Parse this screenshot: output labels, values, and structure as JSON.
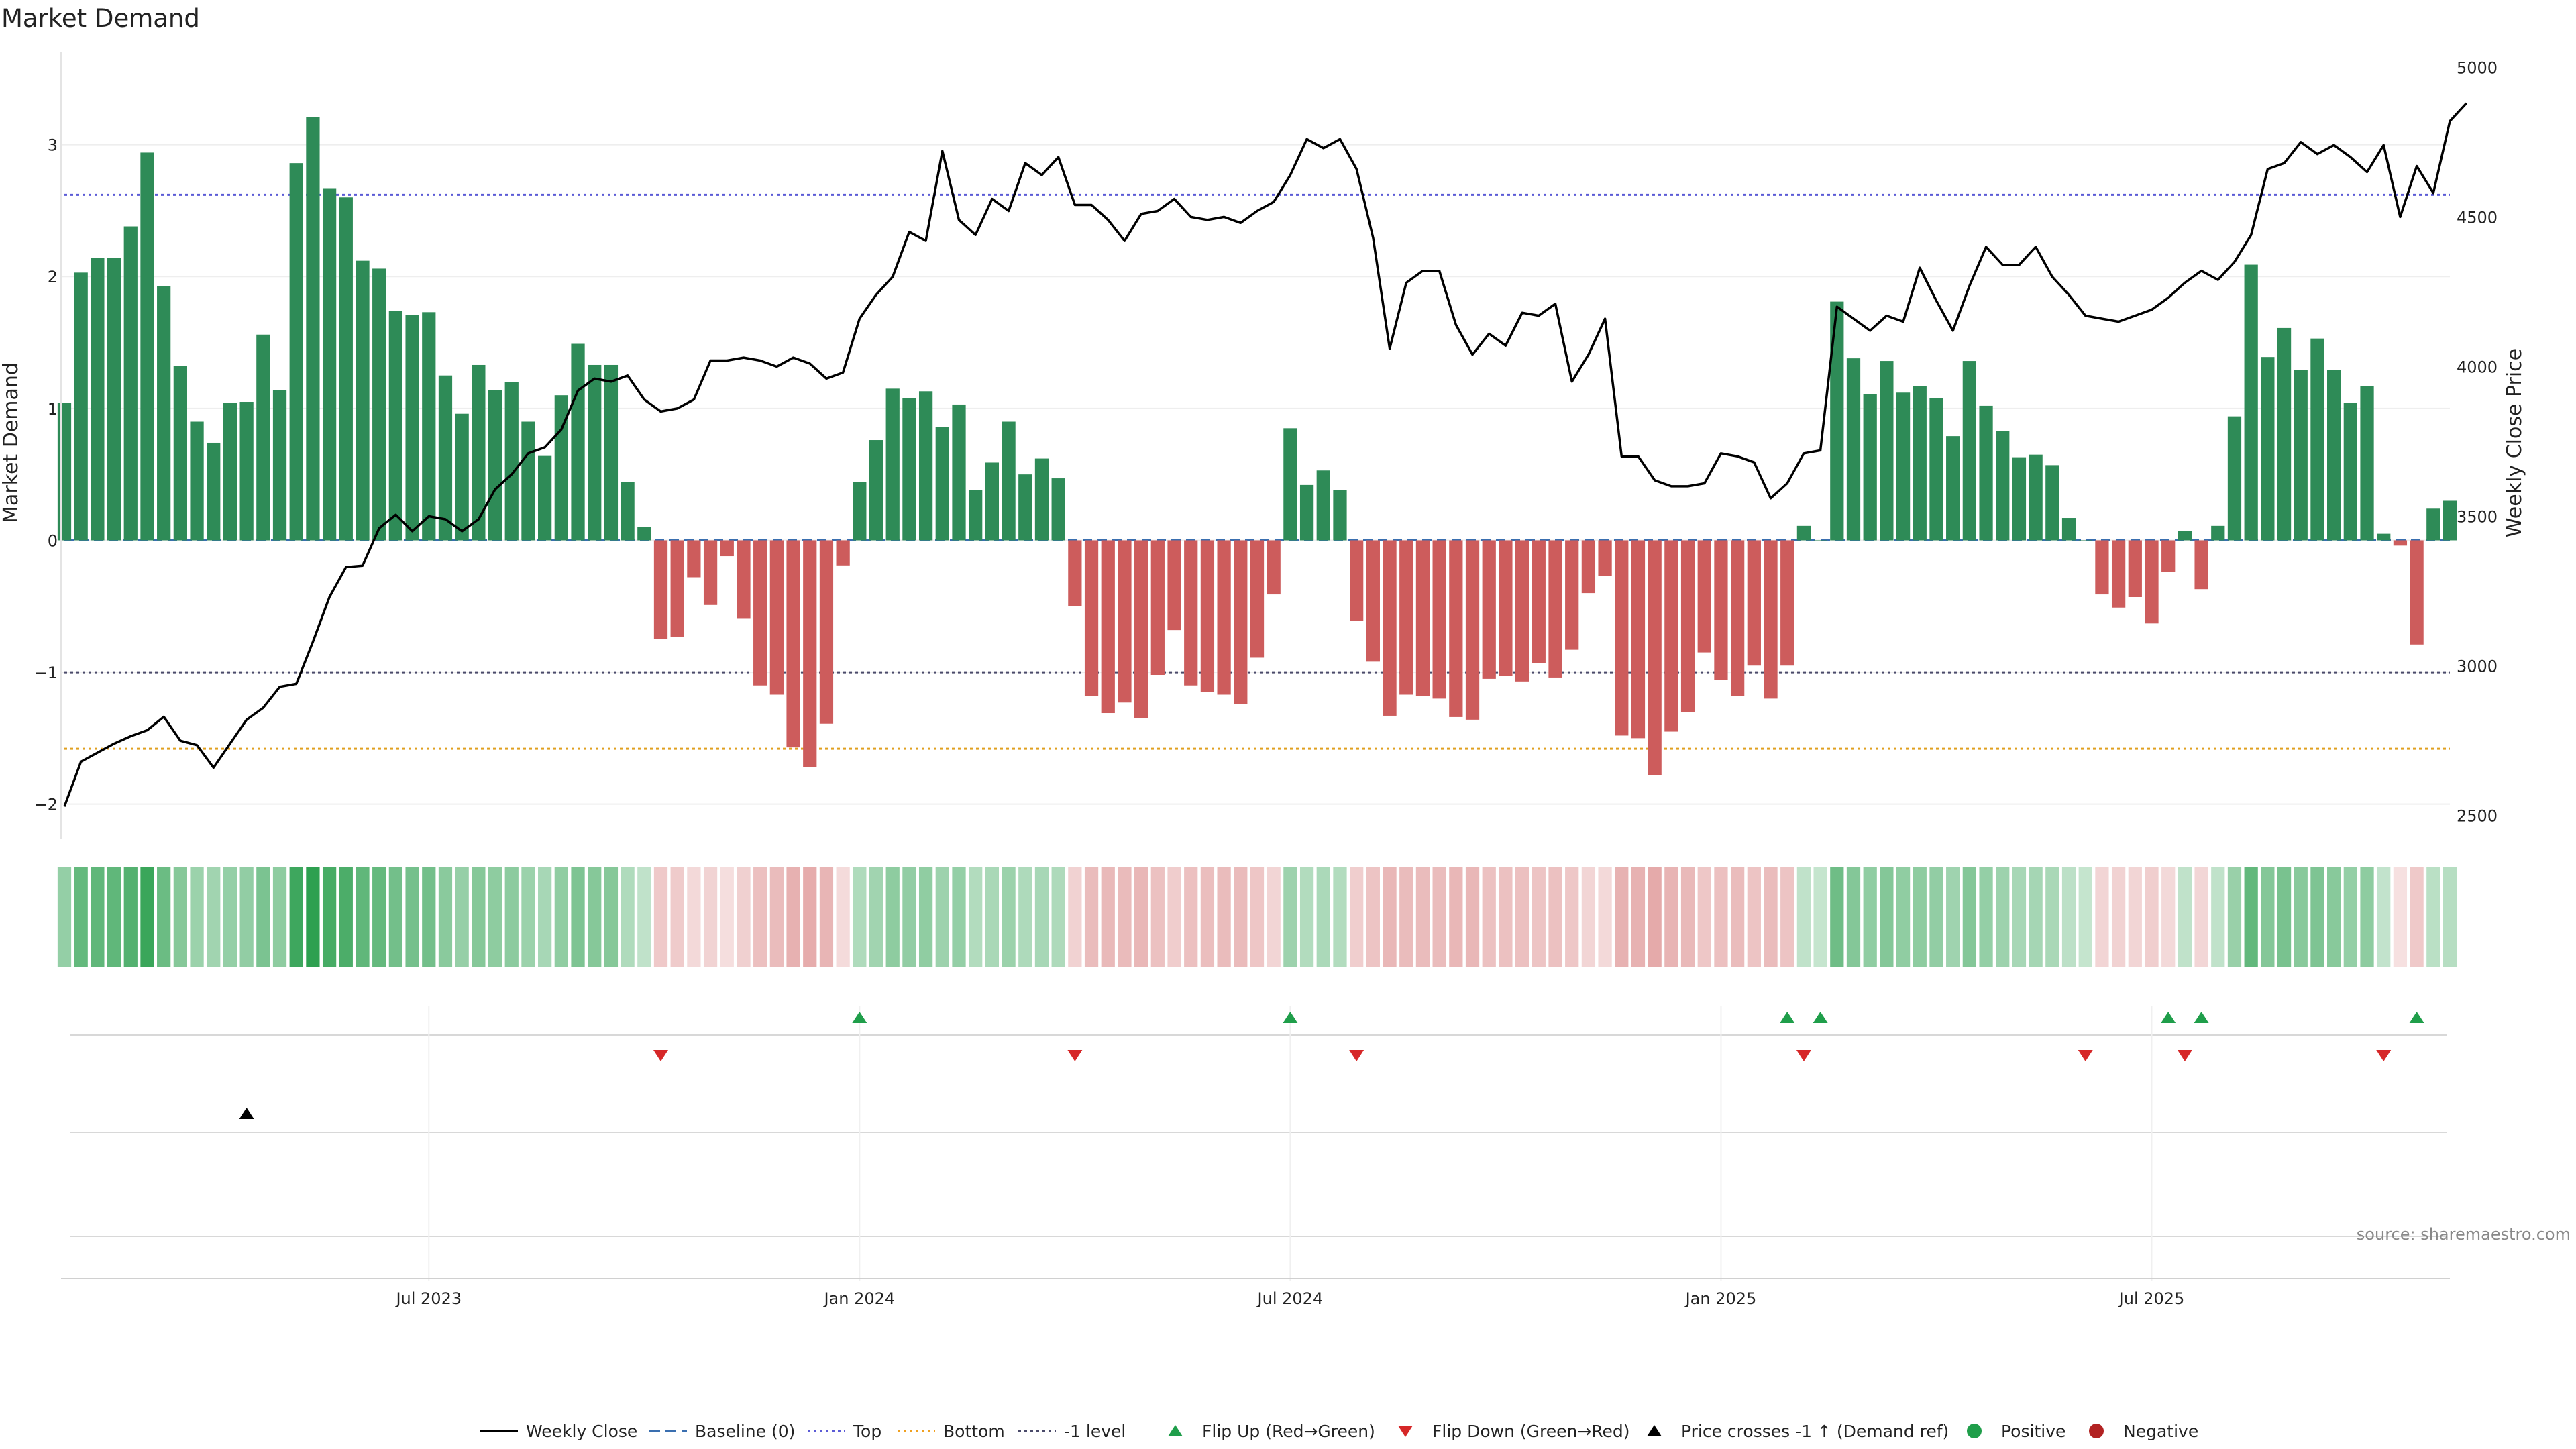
{
  "chart_data": {
    "type": "bar",
    "title": "Market Demand",
    "ylabel": "Market Demand",
    "y2label": "Weekly Close Price",
    "ylim": [
      -2.2,
      3.7
    ],
    "y2lim": [
      2450,
      5050
    ],
    "yticks": [
      {
        "value": 3,
        "label": "3"
      },
      {
        "value": 2,
        "label": "2"
      },
      {
        "value": 1,
        "label": "1"
      },
      {
        "value": 0,
        "label": "0"
      },
      {
        "value": -1,
        "label": "−1"
      },
      {
        "value": -2,
        "label": "−2"
      }
    ],
    "y2ticks": [
      {
        "value": 5000,
        "label": "5000"
      },
      {
        "value": 4500,
        "label": "4500"
      },
      {
        "value": 4000,
        "label": "4000"
      },
      {
        "value": 3500,
        "label": "3500"
      },
      {
        "value": 3000,
        "label": "3000"
      },
      {
        "value": 2500,
        "label": "2500"
      }
    ],
    "xticks": [
      {
        "index": 22,
        "label": "Jul 2023"
      },
      {
        "index": 48,
        "label": "Jan 2024"
      },
      {
        "index": 74,
        "label": "Jul 2024"
      },
      {
        "index": 100,
        "label": "Jan 2025"
      },
      {
        "index": 126,
        "label": "Jul 2025"
      }
    ],
    "reference_lines": {
      "baseline": 0,
      "top": 2.62,
      "bottom": -1.58,
      "minus_one": -1
    },
    "demand": [
      1.04,
      2.03,
      2.14,
      2.14,
      2.38,
      2.94,
      1.93,
      1.32,
      0.9,
      0.74,
      1.04,
      1.05,
      1.56,
      1.14,
      2.86,
      3.21,
      2.67,
      2.6,
      2.12,
      2.06,
      1.74,
      1.71,
      1.73,
      1.25,
      0.96,
      1.33,
      1.14,
      1.2,
      0.9,
      0.64,
      1.1,
      1.49,
      1.33,
      1.33,
      0.44,
      0.1,
      -0.75,
      -0.73,
      -0.28,
      -0.49,
      -0.12,
      -0.59,
      -1.1,
      -1.17,
      -1.57,
      -1.72,
      -1.39,
      -0.19,
      0.44,
      0.76,
      1.15,
      1.08,
      1.13,
      0.86,
      1.03,
      0.38,
      0.59,
      0.9,
      0.5,
      0.62,
      0.47,
      -0.5,
      -1.18,
      -1.31,
      -1.23,
      -1.35,
      -1.02,
      -0.68,
      -1.1,
      -1.15,
      -1.17,
      -1.24,
      -0.89,
      -0.41,
      0.85,
      0.42,
      0.53,
      0.38,
      -0.61,
      -0.92,
      -1.33,
      -1.17,
      -1.18,
      -1.2,
      -1.34,
      -1.36,
      -1.05,
      -1.03,
      -1.07,
      -0.93,
      -1.04,
      -0.83,
      -0.4,
      -0.27,
      -1.48,
      -1.5,
      -1.78,
      -1.45,
      -1.3,
      -0.85,
      -1.06,
      -1.18,
      -0.95,
      -1.2,
      -0.95,
      0.11,
      0.0,
      1.81,
      1.38,
      1.11,
      1.36,
      1.12,
      1.17,
      1.08,
      0.79,
      1.36,
      1.02,
      0.83,
      0.63,
      0.65,
      0.57,
      0.17,
      0.0,
      -0.41,
      -0.51,
      -0.43,
      -0.63,
      -0.24,
      0.07,
      -0.37,
      0.11,
      0.94,
      2.09,
      1.39,
      1.61,
      1.29,
      1.53,
      1.29,
      1.04,
      1.17,
      0.05,
      -0.04,
      -0.79,
      0.24,
      0.3
    ],
    "weekly_close": [
      2530,
      2680,
      2710,
      2740,
      2765,
      2785,
      2830,
      2750,
      2735,
      2660,
      2740,
      2820,
      2860,
      2930,
      2940,
      3080,
      3230,
      3330,
      3335,
      3460,
      3505,
      3450,
      3500,
      3490,
      3450,
      3490,
      3590,
      3640,
      3710,
      3730,
      3790,
      3920,
      3960,
      3950,
      3970,
      3890,
      3850,
      3860,
      3890,
      4020,
      4020,
      4030,
      4020,
      4000,
      4030,
      4010,
      3960,
      3980,
      4160,
      4240,
      4300,
      4450,
      4420,
      4720,
      4490,
      4440,
      4560,
      4520,
      4680,
      4640,
      4700,
      4540,
      4540,
      4490,
      4420,
      4510,
      4520,
      4560,
      4500,
      4490,
      4500,
      4480,
      4520,
      4550,
      4640,
      4760,
      4730,
      4760,
      4660,
      4430,
      4060,
      4280,
      4320,
      4320,
      4140,
      4040,
      4110,
      4070,
      4180,
      4170,
      4210,
      3950,
      4040,
      4160,
      3700,
      3700,
      3620,
      3600,
      3600,
      3610,
      3710,
      3700,
      3680,
      3560,
      3610,
      3710,
      3720,
      4200,
      4160,
      4120,
      4170,
      4150,
      4330,
      4220,
      4120,
      4270,
      4400,
      4340,
      4340,
      4400,
      4300,
      4240,
      4170,
      4160,
      4150,
      4170,
      4190,
      4230,
      4280,
      4320,
      4290,
      4350,
      4440,
      4660,
      4680,
      4750,
      4710,
      4740,
      4700,
      4650,
      4740,
      4500,
      4670,
      4580,
      4820,
      4880
    ],
    "flip_up_index": [
      48,
      74,
      104,
      106,
      127,
      129,
      142
    ],
    "flip_down_index": [
      36,
      61,
      78,
      105,
      122,
      128,
      140
    ],
    "price_cross_index": [
      11
    ],
    "legend": [
      {
        "key": "weekly",
        "label": "Weekly Close",
        "color": "#000000"
      },
      {
        "key": "baseline",
        "label": "Baseline (0)",
        "color": "#3a6fb0"
      },
      {
        "key": "top",
        "label": "Top",
        "color": "#5b5bd6"
      },
      {
        "key": "bottom",
        "label": "Bottom",
        "color": "#f0a020"
      },
      {
        "key": "minus1",
        "label": "-1 level",
        "color": "#4a4a6a"
      },
      {
        "key": "flipup",
        "label": "Flip Up (Red→Green)",
        "color": "#1f9e4a"
      },
      {
        "key": "flipdown",
        "label": "Flip Down (Green→Red)",
        "color": "#d62728"
      },
      {
        "key": "cross",
        "label": "Price crosses -1 ↑ (Demand ref)",
        "color": "#000000"
      },
      {
        "key": "positive",
        "label": "Positive",
        "color": "#1f9e4a"
      },
      {
        "key": "negative",
        "label": "Negative",
        "color": "#b22222"
      }
    ],
    "source": "source: sharemaestro.com"
  },
  "colors": {
    "positive_bar": "#2e8b57",
    "negative_bar": "#cd5c5c"
  }
}
